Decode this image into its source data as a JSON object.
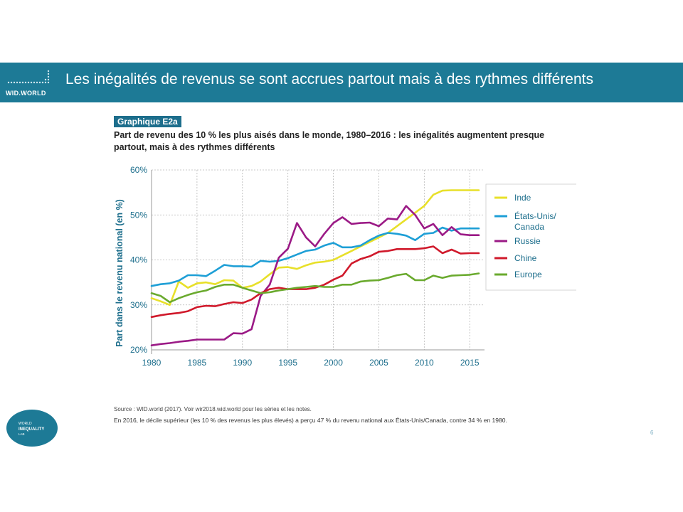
{
  "header": {
    "logo_text": "WID.WORLD",
    "title": "Les inégalités de revenus se sont accrues partout mais à des rythmes différents"
  },
  "figure": {
    "label": "Graphique E2a",
    "title": "Part de revenu des 10 % les plus aisés dans le monde, 1980–2016 : les inégalités augmentent presque partout, mais à des rythmes différents",
    "source": "Source : WID.world (2017). Voir wir2018.wid.world pour les séries et les notes.",
    "note": "En 2016, le décile supérieur (les 10 % des revenus les plus élevés) a perçu 47 % du revenu national aux États-Unis/Canada, contre 34 % en 1980."
  },
  "footer": {
    "lab_logo_line1": "WORLD",
    "lab_logo_line2": "INEQUALITY",
    "lab_logo_line3": "LAB",
    "page_number": "6"
  },
  "colors": {
    "banner": "#1d7a96",
    "inde": "#e8e02a",
    "usa": "#1e9fd6",
    "russie": "#9b1a86",
    "chine": "#d0192b",
    "europe": "#6aaa2e",
    "axis_text": "#1d6e8c"
  },
  "chart_data": {
    "type": "line",
    "ylabel": "Part dans le revenu national (en %)",
    "xlabel": "",
    "ylim": [
      20,
      60
    ],
    "xlim": [
      1980,
      2016
    ],
    "y_ticks": [
      "20%",
      "30%",
      "40%",
      "50%",
      "60%"
    ],
    "y_tick_values": [
      20,
      30,
      40,
      50,
      60
    ],
    "x_ticks": [
      "1980",
      "1985",
      "1990",
      "1995",
      "2000",
      "2005",
      "2010",
      "2015"
    ],
    "x_tick_values": [
      1980,
      1985,
      1990,
      1995,
      2000,
      2005,
      2010,
      2015
    ],
    "grid": true,
    "legend_position": "right",
    "x": [
      1980,
      1981,
      1982,
      1983,
      1984,
      1985,
      1986,
      1987,
      1988,
      1989,
      1990,
      1991,
      1992,
      1993,
      1994,
      1995,
      1996,
      1997,
      1998,
      1999,
      2000,
      2001,
      2002,
      2003,
      2004,
      2005,
      2006,
      2007,
      2008,
      2009,
      2010,
      2011,
      2012,
      2013,
      2014,
      2015,
      2016
    ],
    "series": [
      {
        "name": "Inde",
        "color": "#e8e02a",
        "values": [
          31.5,
          30.8,
          30.0,
          35.2,
          33.8,
          34.8,
          35.0,
          34.6,
          35.5,
          35.4,
          33.8,
          34.2,
          35.2,
          36.8,
          38.3,
          38.4,
          38.0,
          38.8,
          39.4,
          39.6,
          40.0,
          41.0,
          42.0,
          43.0,
          44.0,
          45.0,
          46.0,
          47.5,
          49.0,
          50.5,
          52.0,
          54.5,
          55.4,
          55.5,
          55.5,
          55.5,
          55.5
        ]
      },
      {
        "name": "États-Unis/ Canada",
        "color": "#1e9fd6",
        "values": [
          34.2,
          34.6,
          34.8,
          35.4,
          36.6,
          36.6,
          36.4,
          37.6,
          38.9,
          38.6,
          38.6,
          38.5,
          39.8,
          39.6,
          39.8,
          40.4,
          41.2,
          42.0,
          42.3,
          43.2,
          43.8,
          42.8,
          42.8,
          43.2,
          44.4,
          45.4,
          46.0,
          45.8,
          45.4,
          44.4,
          45.8,
          46.0,
          47.2,
          46.5,
          47.0,
          47.0,
          47.0
        ]
      },
      {
        "name": "Russie",
        "color": "#9b1a86",
        "values": [
          21.0,
          21.3,
          21.5,
          21.8,
          22.0,
          22.3,
          22.3,
          22.3,
          22.3,
          23.7,
          23.6,
          24.6,
          32.0,
          34.5,
          40.5,
          42.5,
          48.2,
          45.0,
          43.0,
          45.8,
          48.2,
          49.5,
          48.0,
          48.2,
          48.3,
          47.5,
          49.2,
          49.0,
          52.0,
          50.0,
          47.0,
          48.0,
          45.5,
          47.3,
          45.7,
          45.5,
          45.5
        ]
      },
      {
        "name": "Chine",
        "color": "#d0192b",
        "values": [
          27.3,
          27.7,
          28.0,
          28.2,
          28.6,
          29.5,
          29.8,
          29.7,
          30.2,
          30.6,
          30.4,
          31.2,
          32.6,
          33.5,
          33.8,
          33.5,
          33.5,
          33.5,
          33.8,
          34.5,
          35.6,
          36.5,
          39.2,
          40.2,
          40.8,
          41.8,
          42.0,
          42.4,
          42.4,
          42.4,
          42.6,
          43.0,
          41.5,
          42.3,
          41.4,
          41.5,
          41.5
        ]
      },
      {
        "name": "Europe",
        "color": "#6aaa2e",
        "values": [
          32.6,
          32.0,
          30.6,
          31.5,
          32.2,
          32.8,
          33.2,
          34.0,
          34.5,
          34.5,
          33.8,
          33.2,
          32.6,
          32.8,
          33.2,
          33.5,
          33.8,
          34.0,
          34.2,
          34.0,
          34.0,
          34.5,
          34.5,
          35.2,
          35.4,
          35.5,
          36.0,
          36.6,
          36.9,
          35.5,
          35.5,
          36.5,
          36.0,
          36.5,
          36.6,
          36.7,
          37.0
        ]
      }
    ]
  }
}
